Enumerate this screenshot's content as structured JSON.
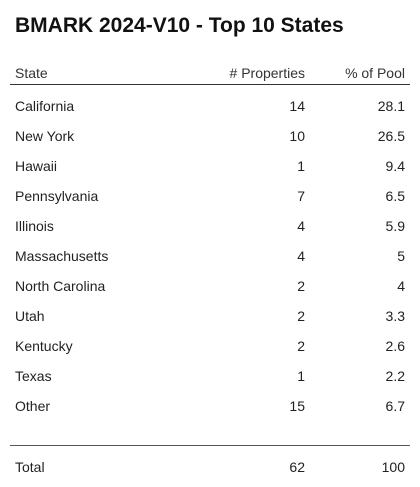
{
  "title": "BMARK 2024-V10 - Top 10 States",
  "columns": {
    "state": "State",
    "properties": "# Properties",
    "pool": "% of Pool"
  },
  "rows": [
    {
      "state": "California",
      "properties": "14",
      "pool": "28.1"
    },
    {
      "state": "New York",
      "properties": "10",
      "pool": "26.5"
    },
    {
      "state": "Hawaii",
      "properties": "1",
      "pool": "9.4"
    },
    {
      "state": "Pennsylvania",
      "properties": "7",
      "pool": "6.5"
    },
    {
      "state": "Illinois",
      "properties": "4",
      "pool": "5.9"
    },
    {
      "state": "Massachusetts",
      "properties": "4",
      "pool": "5"
    },
    {
      "state": "North Carolina",
      "properties": "2",
      "pool": "4"
    },
    {
      "state": "Utah",
      "properties": "2",
      "pool": "3.3"
    },
    {
      "state": "Kentucky",
      "properties": "2",
      "pool": "2.6"
    },
    {
      "state": "Texas",
      "properties": "1",
      "pool": "2.2"
    },
    {
      "state": "Other",
      "properties": "15",
      "pool": "6.7"
    }
  ],
  "total": {
    "state": "Total",
    "properties": "62",
    "pool": "100"
  }
}
